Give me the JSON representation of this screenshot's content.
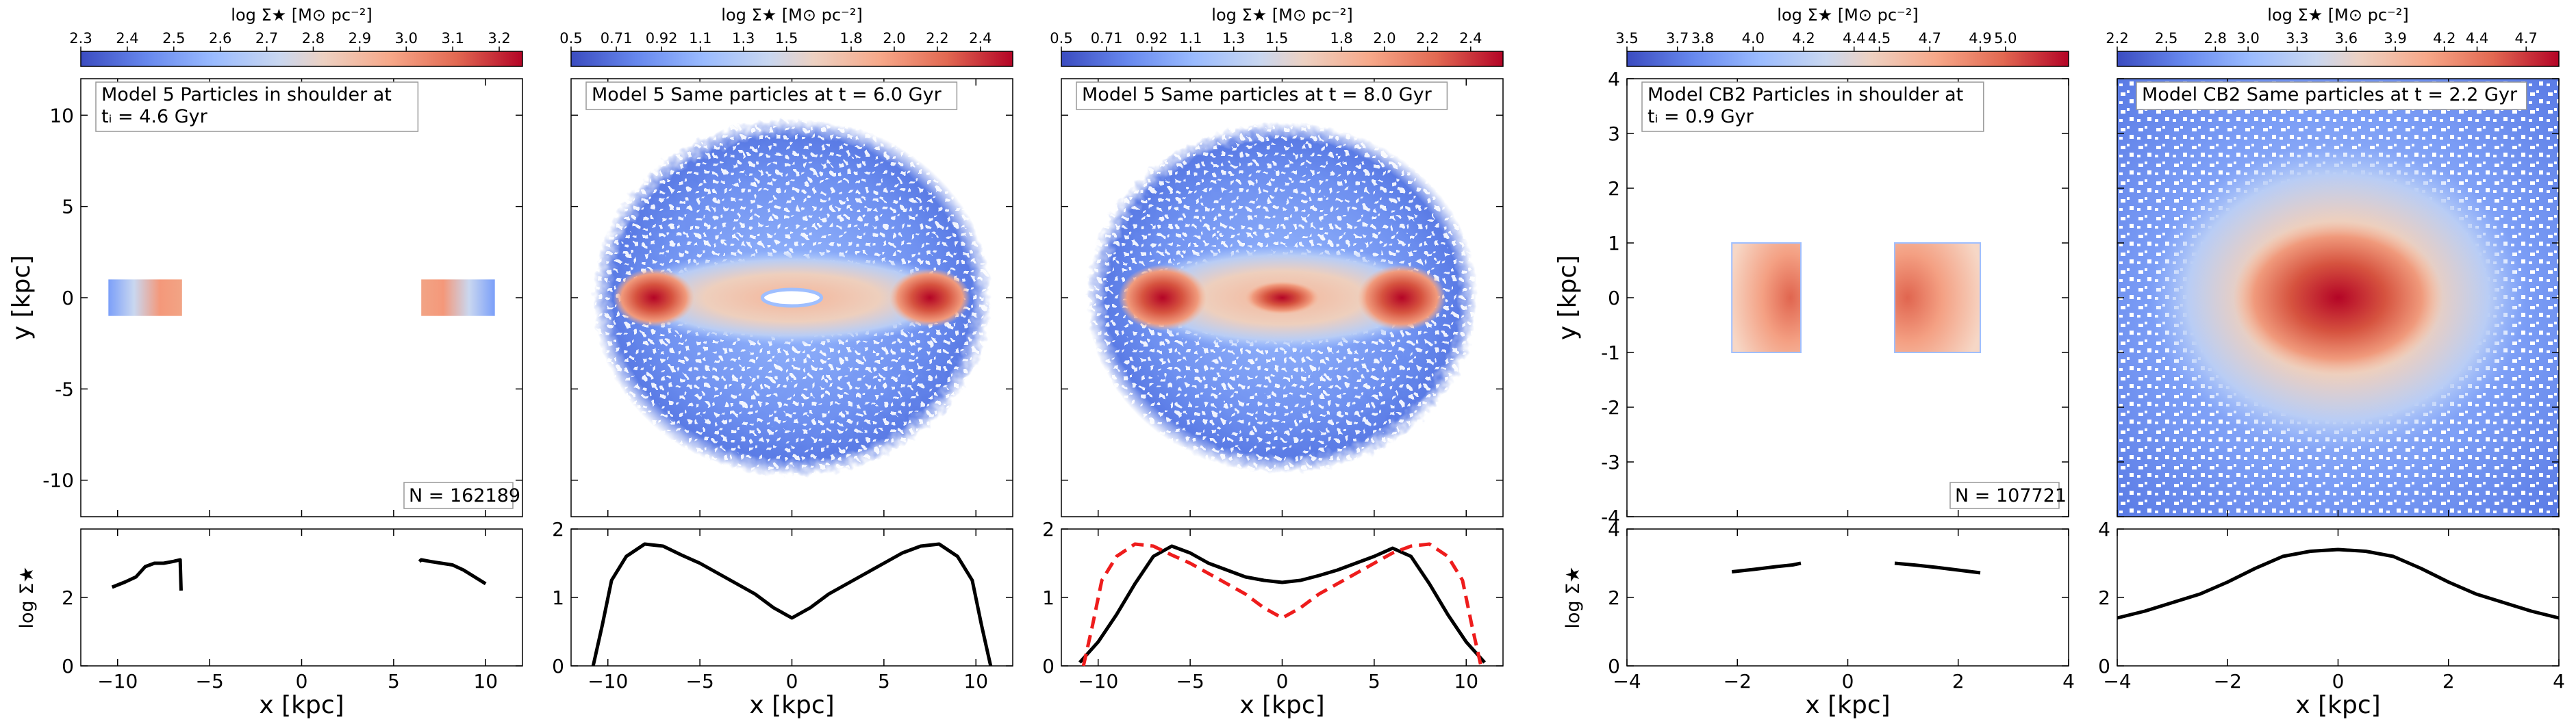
{
  "figure": {
    "x_axis_label": "x [kpc]",
    "y_axis_label": "y [kpc]",
    "profile_y_label": "log Σ★"
  },
  "chart_data": [
    {
      "id": "model5-ti",
      "type": "heatmap",
      "colorbar": {
        "label": "log Σ★ [M⊙ pc⁻²]",
        "min": 2.3,
        "max": 3.25,
        "ticks": [
          "2.3",
          "2.4",
          "2.5",
          "2.6",
          "2.7",
          "2.8",
          "2.9",
          "3.0",
          "3.1",
          "3.2"
        ]
      },
      "title_line1": "Model 5 Particles in shoulder at",
      "title_line2": "tᵢ = 4.6 Gyr",
      "count_label": "N = 162189",
      "xlim": [
        -12,
        12
      ],
      "ylim": [
        -12,
        12
      ],
      "x_ticks": [
        -10,
        -5,
        0,
        5,
        10
      ],
      "y_ticks": [
        -10,
        -5,
        0,
        5,
        10
      ],
      "show_ylabel": true,
      "density_regions": [
        {
          "shape": "rect",
          "x": [
            -10.5,
            -6.5
          ],
          "y": [
            -1,
            1
          ],
          "gradient": "left"
        },
        {
          "shape": "rect",
          "x": [
            6.5,
            10.5
          ],
          "y": [
            -1,
            1
          ],
          "gradient": "right"
        }
      ],
      "profile": {
        "xlim": [
          -12,
          12
        ],
        "ylim": [
          0,
          4
        ],
        "x_ticks": [
          -10,
          -5,
          0,
          5,
          10
        ],
        "y_ticks": [
          0,
          2
        ],
        "series": [
          {
            "name": "left",
            "style": "solid",
            "color": "#000000",
            "x": [
              -10.3,
              -9.6,
              -9.0,
              -8.5,
              -8.0,
              -7.5,
              -7.0,
              -6.6,
              -6.55
            ],
            "y": [
              2.3,
              2.45,
              2.6,
              2.9,
              3.0,
              3.0,
              3.05,
              3.1,
              2.2
            ]
          },
          {
            "name": "right",
            "style": "solid",
            "color": "#000000",
            "x": [
              6.4,
              6.5,
              7.0,
              7.6,
              8.2,
              8.8,
              9.4,
              10.0
            ],
            "y": [
              3.05,
              3.1,
              3.05,
              3.0,
              2.95,
              2.8,
              2.6,
              2.4
            ]
          }
        ]
      }
    },
    {
      "id": "model5-6gyr",
      "type": "heatmap",
      "colorbar": {
        "label": "log Σ★ [M⊙ pc⁻²]",
        "min": 0.5,
        "max": 2.55,
        "ticks": [
          "0.5",
          "0.71",
          "0.92",
          "1.1",
          "1.3",
          "1.5",
          "1.8",
          "2.0",
          "2.2",
          "2.4"
        ]
      },
      "title_line1": "Model 5 Same particles at t = 6.0 Gyr",
      "title_line2": "",
      "count_label": "",
      "xlim": [
        -12,
        12
      ],
      "ylim": [
        -12,
        12
      ],
      "x_ticks": [
        -10,
        -5,
        0,
        5,
        10
      ],
      "y_ticks": [
        -10,
        -5,
        0,
        5,
        10
      ],
      "show_ylabel": false,
      "density_regions": [
        {
          "shape": "halo",
          "cx": 0,
          "cy": 0,
          "rx": 10.8,
          "ry": 9.8
        },
        {
          "shape": "bar",
          "cx": 0,
          "cy": 0,
          "rx": 9.5,
          "ry": 2.6
        },
        {
          "shape": "lobe",
          "cx": -7.5,
          "cy": 0,
          "rx": 2.2,
          "ry": 1.6
        },
        {
          "shape": "lobe",
          "cx": 7.5,
          "cy": 0,
          "rx": 2.2,
          "ry": 1.6
        },
        {
          "shape": "hole",
          "cx": 0,
          "cy": 0,
          "rx": 1.6,
          "ry": 0.45
        }
      ],
      "profile": {
        "xlim": [
          -12,
          12
        ],
        "ylim": [
          0,
          2
        ],
        "x_ticks": [
          -10,
          -5,
          0,
          5,
          10
        ],
        "y_ticks": [
          0,
          1,
          2
        ],
        "series": [
          {
            "name": "t6",
            "style": "solid",
            "color": "#000000",
            "x": [
              -10.8,
              -10.3,
              -9.8,
              -9.0,
              -8.0,
              -7.0,
              -6.0,
              -5.0,
              -4.0,
              -3.0,
              -2.0,
              -1.0,
              0.0,
              1.0,
              2.0,
              3.0,
              4.0,
              5.0,
              6.0,
              7.0,
              8.0,
              9.0,
              9.8,
              10.3,
              10.8
            ],
            "y": [
              0.0,
              0.6,
              1.25,
              1.6,
              1.78,
              1.75,
              1.62,
              1.5,
              1.35,
              1.2,
              1.05,
              0.85,
              0.7,
              0.85,
              1.05,
              1.2,
              1.35,
              1.5,
              1.65,
              1.75,
              1.78,
              1.6,
              1.25,
              0.6,
              0.0
            ]
          }
        ]
      }
    },
    {
      "id": "model5-8gyr",
      "type": "heatmap",
      "colorbar": {
        "label": "log Σ★ [M⊙ pc⁻²]",
        "min": 0.5,
        "max": 2.55,
        "ticks": [
          "0.5",
          "0.71",
          "0.92",
          "1.1",
          "1.3",
          "1.5",
          "1.8",
          "2.0",
          "2.2",
          "2.4"
        ]
      },
      "title_line1": "Model 5 Same particles at t = 8.0 Gyr",
      "title_line2": "",
      "count_label": "",
      "xlim": [
        -12,
        12
      ],
      "ylim": [
        -12,
        12
      ],
      "x_ticks": [
        -10,
        -5,
        0,
        5,
        10
      ],
      "y_ticks": [
        -10,
        -5,
        0,
        5,
        10
      ],
      "show_ylabel": false,
      "density_regions": [
        {
          "shape": "halo",
          "cx": 0,
          "cy": 0,
          "rx": 10.6,
          "ry": 9.6
        },
        {
          "shape": "bar",
          "cx": 0,
          "cy": 0,
          "rx": 8.8,
          "ry": 2.9
        },
        {
          "shape": "lobe",
          "cx": -6.5,
          "cy": 0,
          "rx": 2.4,
          "ry": 1.8
        },
        {
          "shape": "lobe",
          "cx": 6.5,
          "cy": 0,
          "rx": 2.4,
          "ry": 1.8
        },
        {
          "shape": "lobe",
          "cx": 0,
          "cy": 0,
          "rx": 2.0,
          "ry": 0.9
        }
      ],
      "profile": {
        "xlim": [
          -12,
          12
        ],
        "ylim": [
          0,
          2
        ],
        "x_ticks": [
          -10,
          -5,
          0,
          5,
          10
        ],
        "y_ticks": [
          0,
          1,
          2
        ],
        "series": [
          {
            "name": "t8",
            "style": "solid",
            "color": "#000000",
            "x": [
              -11.0,
              -10.5,
              -10.0,
              -9.0,
              -8.0,
              -7.0,
              -6.0,
              -5.0,
              -4.0,
              -3.0,
              -2.0,
              -1.0,
              0.0,
              1.0,
              2.0,
              3.0,
              4.0,
              5.0,
              6.0,
              7.0,
              8.0,
              9.0,
              10.0,
              10.5,
              11.0
            ],
            "y": [
              0.05,
              0.2,
              0.35,
              0.75,
              1.2,
              1.6,
              1.75,
              1.65,
              1.5,
              1.4,
              1.3,
              1.25,
              1.22,
              1.25,
              1.32,
              1.4,
              1.5,
              1.6,
              1.72,
              1.6,
              1.2,
              0.75,
              0.35,
              0.2,
              0.05
            ]
          },
          {
            "name": "t6 reference",
            "style": "dashed",
            "color": "#ee1c1c",
            "x": [
              -10.8,
              -10.3,
              -9.8,
              -9.0,
              -8.0,
              -7.0,
              -6.0,
              -5.0,
              -4.0,
              -3.0,
              -2.0,
              -1.0,
              0.0,
              1.0,
              2.0,
              3.0,
              4.0,
              5.0,
              6.0,
              7.0,
              8.0,
              9.0,
              9.8,
              10.3,
              10.8
            ],
            "y": [
              0.0,
              0.6,
              1.25,
              1.6,
              1.78,
              1.75,
              1.62,
              1.5,
              1.35,
              1.2,
              1.05,
              0.85,
              0.7,
              0.85,
              1.05,
              1.2,
              1.35,
              1.5,
              1.65,
              1.75,
              1.78,
              1.6,
              1.25,
              0.6,
              0.0
            ]
          }
        ]
      }
    },
    {
      "id": "modelcb2-ti",
      "type": "heatmap",
      "colorbar": {
        "label": "log Σ★ [M⊙ pc⁻²]",
        "min": 3.5,
        "max": 5.25,
        "ticks": [
          "3.5",
          "3.7",
          "3.8",
          "4.0",
          "4.2",
          "4.4",
          "4.5",
          "4.7",
          "4.9",
          "5.0"
        ]
      },
      "title_line1": "Model CB2 Particles in shoulder at",
      "title_line2": "tᵢ = 0.9 Gyr",
      "count_label": "N = 107721",
      "xlim": [
        -4,
        4
      ],
      "ylim": [
        -4,
        4
      ],
      "x_ticks": [
        -4,
        -2,
        0,
        2,
        4
      ],
      "y_ticks": [
        -4,
        -3,
        -2,
        -1,
        0,
        1,
        2,
        3,
        4
      ],
      "show_ylabel": true,
      "density_regions": [
        {
          "shape": "rect",
          "x": [
            -2.1,
            -0.85
          ],
          "y": [
            -1,
            1
          ],
          "gradient": "center-right"
        },
        {
          "shape": "rect",
          "x": [
            0.85,
            2.4
          ],
          "y": [
            -1,
            1
          ],
          "gradient": "center-left"
        }
      ],
      "profile": {
        "xlim": [
          -4,
          4
        ],
        "ylim": [
          0,
          4
        ],
        "x_ticks": [
          -4,
          -2,
          0,
          2,
          4
        ],
        "y_ticks": [
          0,
          2,
          4
        ],
        "series": [
          {
            "name": "left",
            "style": "solid",
            "color": "#000000",
            "x": [
              -2.1,
              -1.7,
              -1.3,
              -1.0,
              -0.85
            ],
            "y": [
              2.75,
              2.82,
              2.9,
              2.95,
              3.0
            ]
          },
          {
            "name": "right",
            "style": "solid",
            "color": "#000000",
            "x": [
              0.85,
              1.2,
              1.6,
              2.0,
              2.4
            ],
            "y": [
              3.0,
              2.95,
              2.88,
              2.8,
              2.72
            ]
          }
        ]
      }
    },
    {
      "id": "modelcb2-2gyr",
      "type": "heatmap",
      "colorbar": {
        "label": "log Σ★ [M⊙ pc⁻²]",
        "min": 2.2,
        "max": 4.9,
        "ticks": [
          "2.2",
          "2.5",
          "2.8",
          "3.0",
          "3.3",
          "3.6",
          "3.9",
          "4.2",
          "4.4",
          "4.7"
        ]
      },
      "title_line1": "Model CB2 Same particles at t = 2.2 Gyr",
      "title_line2": "",
      "count_label": "",
      "xlim": [
        -4,
        4
      ],
      "ylim": [
        -4,
        4
      ],
      "x_ticks": [
        -4,
        -2,
        0,
        2,
        4
      ],
      "y_ticks": [
        -4,
        -3,
        -2,
        -1,
        0,
        1,
        2,
        3,
        4
      ],
      "show_ylabel": false,
      "density_regions": [
        {
          "shape": "fill"
        },
        {
          "shape": "bar",
          "cx": 0,
          "cy": 0,
          "rx": 3.4,
          "ry": 2.8
        },
        {
          "shape": "lobe",
          "cx": 0,
          "cy": 0,
          "rx": 1.9,
          "ry": 1.4
        }
      ],
      "profile": {
        "xlim": [
          -4,
          4
        ],
        "ylim": [
          0,
          4
        ],
        "x_ticks": [
          -4,
          -2,
          0,
          2,
          4
        ],
        "y_ticks": [
          0,
          2,
          4
        ],
        "series": [
          {
            "name": "t2.2",
            "style": "solid",
            "color": "#000000",
            "x": [
              -4,
              -3.5,
              -3,
              -2.5,
              -2,
              -1.5,
              -1,
              -0.5,
              0,
              0.5,
              1,
              1.5,
              2,
              2.5,
              3,
              3.5,
              4
            ],
            "y": [
              1.4,
              1.6,
              1.85,
              2.1,
              2.45,
              2.85,
              3.2,
              3.35,
              3.4,
              3.35,
              3.2,
              2.85,
              2.45,
              2.1,
              1.85,
              1.6,
              1.4
            ]
          }
        ]
      }
    }
  ]
}
